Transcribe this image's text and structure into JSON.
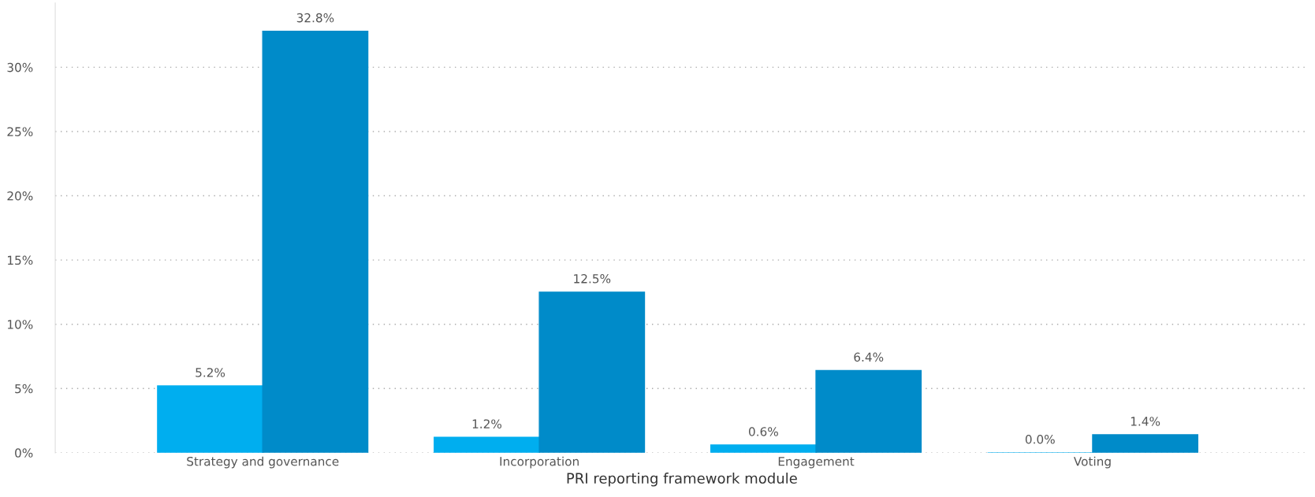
{
  "chart_data": {
    "type": "bar",
    "xlabel": "PRI reporting framework module",
    "categories": [
      "Strategy and governance",
      "Incorporation",
      "Engagement",
      "Voting"
    ],
    "series": [
      {
        "color": "#00aeef",
        "values": [
          5.2,
          1.2,
          0.6,
          0.0
        ],
        "value_labels": [
          "5.2%",
          "1.2%",
          "0.6%",
          "0.0%"
        ]
      },
      {
        "color": "#008bc9",
        "values": [
          32.8,
          12.5,
          6.4,
          1.4
        ],
        "value_labels": [
          "32.8%",
          "12.5%",
          "6.4%",
          "1.4%"
        ]
      }
    ],
    "ylim": [
      0,
      35
    ],
    "yticks": [
      {
        "value": 0,
        "label": "0%"
      },
      {
        "value": 5,
        "label": "5%"
      },
      {
        "value": 10,
        "label": "10%"
      },
      {
        "value": 15,
        "label": "15%"
      },
      {
        "value": 20,
        "label": "20%"
      },
      {
        "value": 25,
        "label": "25%"
      },
      {
        "value": 30,
        "label": "30%"
      }
    ],
    "grid": "y",
    "legend": false
  }
}
